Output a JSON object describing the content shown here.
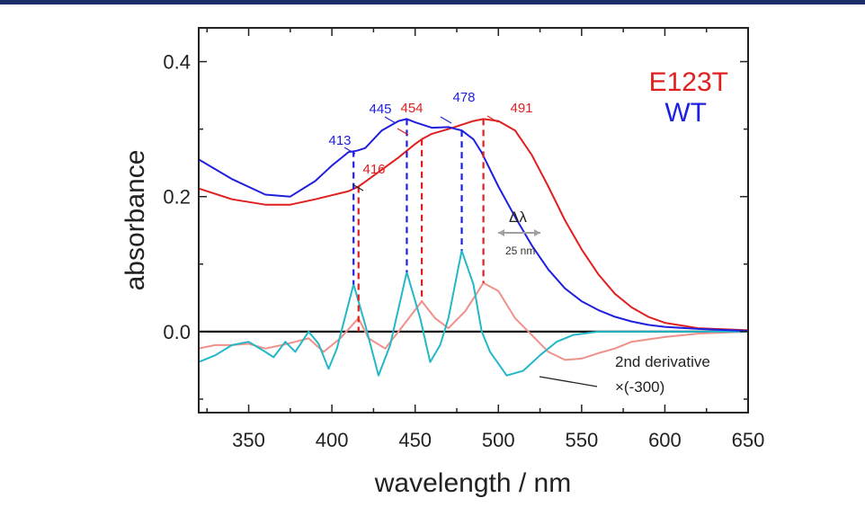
{
  "chart_data": {
    "type": "line",
    "xlabel": "wavelength / nm",
    "ylabel": "absorbance",
    "xlim": [
      320,
      650
    ],
    "ylim": [
      -0.12,
      0.45
    ],
    "xticks": [
      350,
      400,
      450,
      500,
      550,
      600,
      650
    ],
    "yticks": [
      0.0,
      0.2,
      0.4
    ],
    "ytick_labels": [
      "0.0",
      "0.2",
      "0.4"
    ],
    "legend": [
      {
        "name": "E123T",
        "color": "#e02020"
      },
      {
        "name": "WT",
        "color": "#1f1fe0"
      }
    ],
    "legend_placement": "top-right",
    "series": [
      {
        "name": "WT",
        "color": "#1f1fe0",
        "x": [
          320,
          340,
          360,
          375,
          390,
          400,
          410,
          415,
          420,
          430,
          440,
          445,
          450,
          460,
          470,
          478,
          485,
          490,
          500,
          510,
          520,
          530,
          540,
          550,
          560,
          570,
          580,
          590,
          600,
          620,
          650
        ],
        "y": [
          0.255,
          0.226,
          0.203,
          0.2,
          0.223,
          0.246,
          0.266,
          0.268,
          0.272,
          0.298,
          0.312,
          0.315,
          0.31,
          0.302,
          0.303,
          0.298,
          0.285,
          0.265,
          0.215,
          0.17,
          0.128,
          0.092,
          0.064,
          0.045,
          0.032,
          0.022,
          0.015,
          0.01,
          0.007,
          0.004,
          0.001
        ]
      },
      {
        "name": "E123T",
        "color": "#e02020",
        "x": [
          320,
          340,
          360,
          375,
          390,
          400,
          410,
          416,
          420,
          430,
          440,
          450,
          454,
          460,
          470,
          480,
          485,
          491,
          500,
          510,
          520,
          530,
          540,
          550,
          560,
          570,
          580,
          590,
          600,
          620,
          650
        ],
        "y": [
          0.212,
          0.196,
          0.188,
          0.188,
          0.196,
          0.202,
          0.208,
          0.215,
          0.222,
          0.24,
          0.258,
          0.278,
          0.285,
          0.293,
          0.3,
          0.308,
          0.312,
          0.315,
          0.312,
          0.298,
          0.262,
          0.215,
          0.165,
          0.122,
          0.085,
          0.056,
          0.036,
          0.022,
          0.013,
          0.005,
          0.002
        ]
      },
      {
        "name": "WT 2nd derivative",
        "color": "#22b8c8",
        "x": [
          320,
          330,
          340,
          350,
          360,
          365,
          372,
          378,
          386,
          392,
          398,
          403,
          413,
          420,
          428,
          435,
          445,
          453,
          459,
          465,
          470,
          478,
          485,
          490,
          495,
          505,
          515,
          525,
          535,
          545,
          560,
          580,
          600,
          620,
          650
        ],
        "y": [
          -0.045,
          -0.035,
          -0.02,
          -0.015,
          -0.03,
          -0.038,
          -0.015,
          -0.03,
          0.0,
          -0.018,
          -0.055,
          -0.025,
          0.07,
          0.01,
          -0.065,
          -0.02,
          0.088,
          0.02,
          -0.045,
          -0.02,
          0.02,
          0.12,
          0.07,
          0.0,
          -0.03,
          -0.065,
          -0.058,
          -0.035,
          -0.015,
          -0.005,
          0.0,
          0.0,
          0.0,
          0.0,
          0.0
        ]
      },
      {
        "name": "E123T 2nd derivative",
        "color": "#f0908a",
        "x": [
          320,
          330,
          340,
          350,
          360,
          370,
          378,
          386,
          395,
          405,
          416,
          422,
          432,
          440,
          454,
          462,
          470,
          480,
          491,
          500,
          510,
          520,
          530,
          540,
          550,
          560,
          570,
          580,
          600,
          620,
          650
        ],
        "y": [
          -0.025,
          -0.02,
          -0.02,
          -0.018,
          -0.025,
          -0.02,
          -0.015,
          -0.01,
          -0.03,
          -0.01,
          0.02,
          -0.01,
          -0.025,
          0.0,
          0.045,
          0.02,
          0.005,
          0.03,
          0.072,
          0.06,
          0.02,
          -0.005,
          -0.03,
          -0.042,
          -0.04,
          -0.032,
          -0.025,
          -0.015,
          -0.008,
          -0.003,
          0.0
        ]
      }
    ],
    "peak_markers": [
      {
        "label": "413",
        "x": 413,
        "y_top": 0.268,
        "y_bottom": 0.07,
        "color": "#1f1fe0"
      },
      {
        "label": "416",
        "x": 416,
        "y_top": 0.215,
        "y_bottom": 0.0,
        "color": "#e02020"
      },
      {
        "label": "445",
        "x": 445,
        "y_top": 0.315,
        "y_bottom": 0.088,
        "color": "#1f1fe0"
      },
      {
        "label": "454",
        "x": 454,
        "y_top": 0.285,
        "y_bottom": 0.045,
        "color": "#e02020"
      },
      {
        "label": "478",
        "x": 478,
        "y_top": 0.298,
        "y_bottom": 0.12,
        "color": "#1f1fe0"
      },
      {
        "label": "491",
        "x": 491,
        "y_top": 0.315,
        "y_bottom": 0.072,
        "color": "#e02020"
      }
    ],
    "annotations": {
      "delta_label": "Δλ",
      "delta_value": "25 nm",
      "derivative_line1": "2nd derivative",
      "derivative_line2": "×(-300)"
    }
  }
}
